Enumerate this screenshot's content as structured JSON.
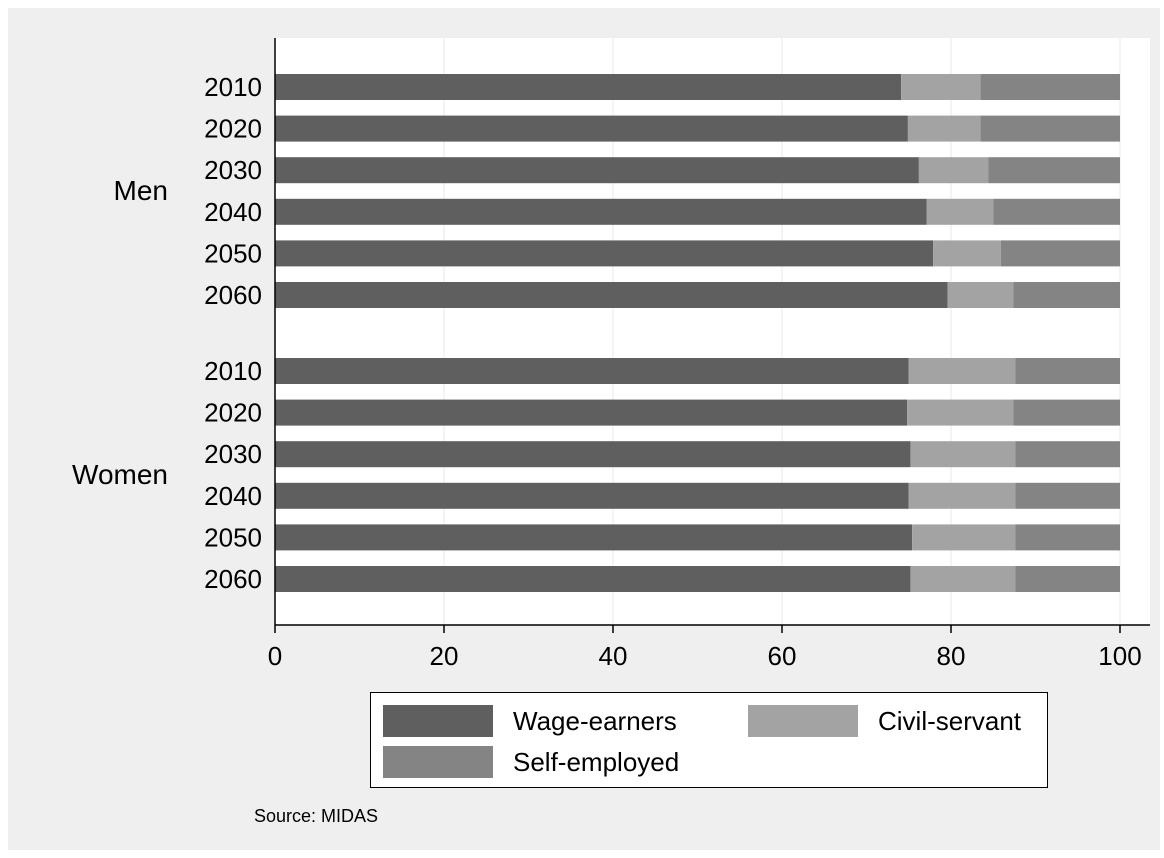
{
  "chart_data": {
    "type": "bar",
    "orientation": "horizontal",
    "stacked": true,
    "groups": [
      {
        "label": "Men",
        "categories": [
          "2010",
          "2020",
          "2030",
          "2040",
          "2050",
          "2060"
        ]
      },
      {
        "label": "Women",
        "categories": [
          "2010",
          "2020",
          "2030",
          "2040",
          "2050",
          "2060"
        ]
      }
    ],
    "series": [
      {
        "name": "Wage-earners",
        "color": "#5f5f5f",
        "values": [
          74.1,
          74.9,
          76.2,
          77.1,
          77.9,
          79.6,
          75.0,
          74.8,
          75.2,
          75.0,
          75.4,
          75.2
        ]
      },
      {
        "name": "Civil-servant",
        "color": "#a3a3a3",
        "values": [
          9.4,
          8.6,
          8.2,
          7.9,
          8.0,
          7.8,
          12.6,
          12.6,
          12.4,
          12.6,
          12.2,
          12.4
        ]
      },
      {
        "name": "Self-employed",
        "color": "#848484",
        "values": [
          16.5,
          16.5,
          15.6,
          15.0,
          14.1,
          12.6,
          12.4,
          12.6,
          12.4,
          12.4,
          12.4,
          12.4
        ]
      }
    ],
    "xlim": [
      0,
      100
    ],
    "xticks": [
      "0",
      "20",
      "40",
      "60",
      "80",
      "100"
    ],
    "xlabel": "",
    "ylabel": "",
    "title": "",
    "grid": "vertical",
    "legend_position": "bottom"
  },
  "note": "Source: MIDAS"
}
